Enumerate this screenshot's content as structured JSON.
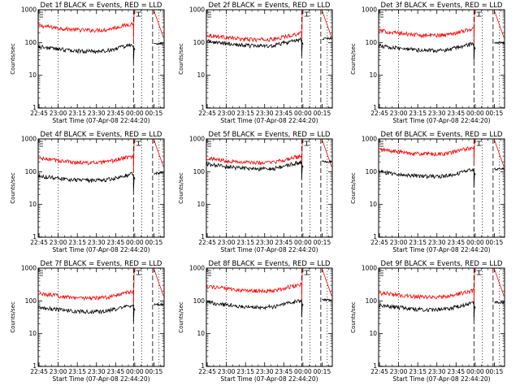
{
  "figure": {
    "background": "#ffffff",
    "axis_color": "#000000",
    "events_color": "#000000",
    "lld_color": "#ff0000"
  },
  "chart_data": [
    {
      "type": "line",
      "title": "Det 1f BLACK = Events, RED = LLD",
      "xlabel": "Start Time (07-Apr-08 22:44:20)",
      "ylabel": "Counts/sec",
      "yscale": "log",
      "ylim": [
        1,
        1000
      ],
      "yticks": [
        "1",
        "10",
        "100",
        "1000"
      ],
      "xticks": [
        "22:45",
        "23:00",
        "23:15",
        "23:30",
        "23:45",
        "00:00",
        "00:15"
      ],
      "xrange": [
        "22:44:20",
        "00:23:00"
      ],
      "events_level": 75,
      "lld_level": 330
    },
    {
      "type": "line",
      "title": "Det 2f BLACK = Events, RED = LLD",
      "xlabel": "Start Time (07-Apr-08 22:44:20)",
      "ylabel": "Counts/sec",
      "yscale": "log",
      "ylim": [
        1,
        1000
      ],
      "yticks": [
        "1",
        "10",
        "100",
        "1000"
      ],
      "xticks": [
        "22:45",
        "23:00",
        "23:15",
        "23:30",
        "23:45",
        "00:00",
        "00:15"
      ],
      "xrange": [
        "22:44:20",
        "00:23:00"
      ],
      "events_level": 110,
      "lld_level": 170
    },
    {
      "type": "line",
      "title": "Det 3f BLACK = Events, RED = LLD",
      "xlabel": "Start Time (07-Apr-08 22:44:20)",
      "ylabel": "Counts/sec",
      "yscale": "log",
      "ylim": [
        1,
        1000
      ],
      "yticks": [
        "1",
        "10",
        "100",
        "1000"
      ],
      "xticks": [
        "22:45",
        "23:00",
        "23:15",
        "23:30",
        "23:45",
        "00:00",
        "00:15"
      ],
      "xrange": [
        "22:44:20",
        "00:23:00"
      ],
      "events_level": 80,
      "lld_level": 230
    },
    {
      "type": "line",
      "title": "Det 4f BLACK = Events, RED = LLD",
      "xlabel": "Start Time (07-Apr-08 22:44:20)",
      "ylabel": "Counts/sec",
      "yscale": "log",
      "ylim": [
        1,
        1000
      ],
      "yticks": [
        "1",
        "10",
        "100",
        "1000"
      ],
      "xticks": [
        "22:45",
        "23:00",
        "23:15",
        "23:30",
        "23:45",
        "00:00",
        "00:15"
      ],
      "xrange": [
        "22:44:20",
        "00:23:00"
      ],
      "events_level": 75,
      "lld_level": 260
    },
    {
      "type": "line",
      "title": "Det 5f BLACK = Events, RED = LLD",
      "xlabel": "Start Time (07-Apr-08 22:44:20)",
      "ylabel": "Counts/sec",
      "yscale": "log",
      "ylim": [
        1,
        1000
      ],
      "yticks": [
        "1",
        "10",
        "100",
        "1000"
      ],
      "xticks": [
        "22:45",
        "23:00",
        "23:15",
        "23:30",
        "23:45",
        "00:00",
        "00:15"
      ],
      "xrange": [
        "22:44:20",
        "00:23:00"
      ],
      "events_level": 170,
      "lld_level": 260
    },
    {
      "type": "line",
      "title": "Det 6f BLACK = Events, RED = LLD",
      "xlabel": "Start Time (07-Apr-08 22:44:20)",
      "ylabel": "Counts/sec",
      "yscale": "log",
      "ylim": [
        1,
        1000
      ],
      "yticks": [
        "1",
        "10",
        "100",
        "1000"
      ],
      "xticks": [
        "22:45",
        "23:00",
        "23:15",
        "23:30",
        "23:45",
        "00:00",
        "00:15"
      ],
      "xrange": [
        "22:44:20",
        "00:23:00"
      ],
      "events_level": 100,
      "lld_level": 480
    },
    {
      "type": "line",
      "title": "Det 7f BLACK = Events, RED = LLD",
      "xlabel": "Start Time (07-Apr-08 22:44:20)",
      "ylabel": "Counts/sec",
      "yscale": "log",
      "ylim": [
        1,
        1000
      ],
      "yticks": [
        "1",
        "10",
        "100",
        "1000"
      ],
      "xticks": [
        "22:45",
        "23:00",
        "23:15",
        "23:30",
        "23:45",
        "00:00",
        "00:15"
      ],
      "xrange": [
        "22:44:20",
        "00:23:00"
      ],
      "events_level": 65,
      "lld_level": 170
    },
    {
      "type": "line",
      "title": "Det 8f BLACK = Events, RED = LLD",
      "xlabel": "Start Time (07-Apr-08 22:44:20)",
      "ylabel": "Counts/sec",
      "yscale": "log",
      "ylim": [
        1,
        1000
      ],
      "yticks": [
        "1",
        "10",
        "100",
        "1000"
      ],
      "xticks": [
        "22:45",
        "23:00",
        "23:15",
        "23:30",
        "23:45",
        "00:00",
        "00:15"
      ],
      "xrange": [
        "22:44:20",
        "00:23:00"
      ],
      "events_level": 90,
      "lld_level": 280
    },
    {
      "type": "line",
      "title": "Det 9f BLACK = Events, RED = LLD",
      "xlabel": "Start Time (07-Apr-08 22:44:20)",
      "ylabel": "Counts/sec",
      "yscale": "log",
      "ylim": [
        1,
        1000
      ],
      "yticks": [
        "1",
        "10",
        "100",
        "1000"
      ],
      "xticks": [
        "22:45",
        "23:00",
        "23:15",
        "23:30",
        "23:45",
        "00:00",
        "00:15"
      ],
      "xrange": [
        "22:44:20",
        "00:23:00"
      ],
      "events_level": 75,
      "lld_level": 180
    }
  ]
}
